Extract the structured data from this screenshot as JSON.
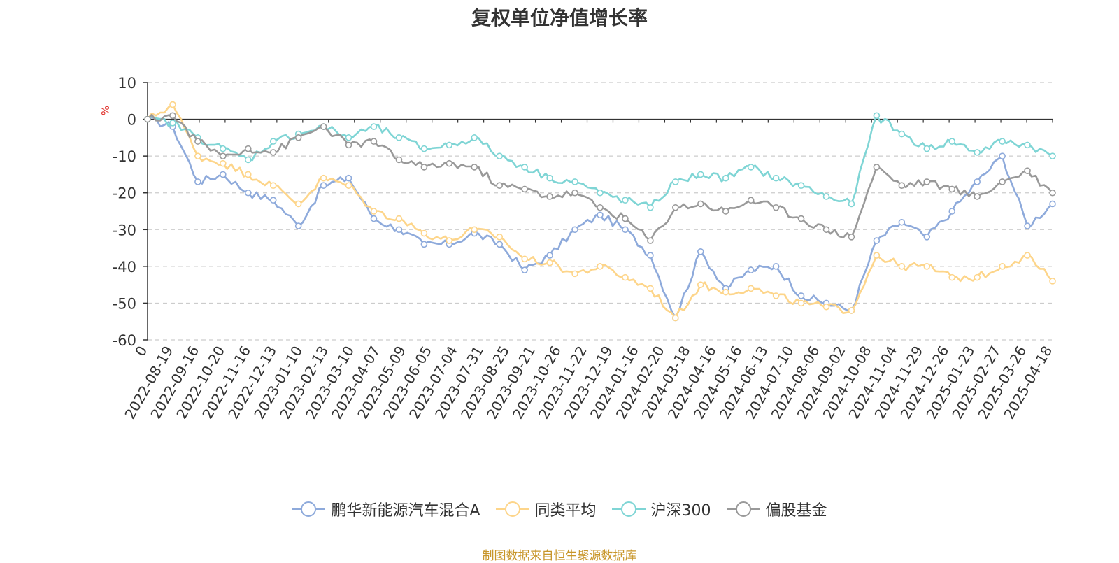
{
  "chart_data": {
    "type": "line",
    "title": "复权单位净值增长率",
    "ylabel": "%",
    "ylim": [
      -60,
      10
    ],
    "y_ticks": [
      10,
      0,
      -10,
      -20,
      -30,
      -40,
      -50,
      -60
    ],
    "x_origin_label": "0",
    "x_ticks": [
      "2022-08-19",
      "2022-09-16",
      "2022-10-20",
      "2022-11-16",
      "2022-12-13",
      "2023-01-10",
      "2023-02-13",
      "2023-03-10",
      "2023-04-07",
      "2023-05-09",
      "2023-06-05",
      "2023-07-04",
      "2023-07-31",
      "2023-08-25",
      "2023-09-21",
      "2023-10-26",
      "2023-11-22",
      "2023-12-19",
      "2024-01-16",
      "2024-02-20",
      "2024-03-18",
      "2024-04-16",
      "2024-05-16",
      "2024-06-13",
      "2024-07-10",
      "2024-08-06",
      "2024-09-02",
      "2024-10-08",
      "2024-11-04",
      "2024-11-29",
      "2024-12-26",
      "2025-01-23",
      "2025-02-27",
      "2025-03-26",
      "2025-04-18"
    ],
    "grid": "dashed-horizontal",
    "legend_position": "bottom",
    "series": [
      {
        "name": "鹏华新能源汽车混合A",
        "color": "#8eaadb",
        "values": [
          0,
          -2,
          -17,
          -15,
          -20,
          -22,
          -29,
          -18,
          -16,
          -27,
          -30,
          -34,
          -34,
          -31,
          -34,
          -41,
          -37,
          -30,
          -26,
          -30,
          -37,
          -54,
          -36,
          -46,
          -41,
          -40,
          -48,
          -50,
          -52,
          -33,
          -28,
          -32,
          -25,
          -17,
          -10,
          -29,
          -23
        ]
      },
      {
        "name": "同类平均",
        "color": "#fdd58a",
        "values": [
          0,
          4,
          -10,
          -12,
          -15,
          -18,
          -23,
          -16,
          -18,
          -25,
          -27,
          -31,
          -33,
          -30,
          -32,
          -38,
          -39,
          -42,
          -40,
          -43,
          -46,
          -54,
          -45,
          -47,
          -46,
          -48,
          -50,
          -51,
          -52,
          -37,
          -40,
          -40,
          -43,
          -43,
          -40,
          -37,
          -44
        ]
      },
      {
        "name": "沪深300",
        "color": "#7fd5d5",
        "values": [
          0,
          -1,
          -5,
          -8,
          -11,
          -6,
          -4,
          -2,
          -5,
          -2,
          -5,
          -8,
          -7,
          -5,
          -10,
          -13,
          -16,
          -17,
          -20,
          -22,
          -24,
          -17,
          -15,
          -16,
          -13,
          -16,
          -18,
          -21,
          -23,
          1,
          -4,
          -8,
          -6,
          -9,
          -6,
          -7,
          -10
        ]
      },
      {
        "name": "偏股基金",
        "color": "#999999",
        "values": [
          0,
          1,
          -6,
          -10,
          -8,
          -9,
          -5,
          -2,
          -7,
          -6,
          -11,
          -13,
          -12,
          -13,
          -18,
          -19,
          -21,
          -20,
          -24,
          -27,
          -33,
          -24,
          -23,
          -25,
          -22,
          -24,
          -27,
          -30,
          -32,
          -13,
          -18,
          -17,
          -19,
          -21,
          -17,
          -14,
          -20
        ]
      }
    ]
  },
  "source_note": "制图数据来自恒生聚源数据库"
}
